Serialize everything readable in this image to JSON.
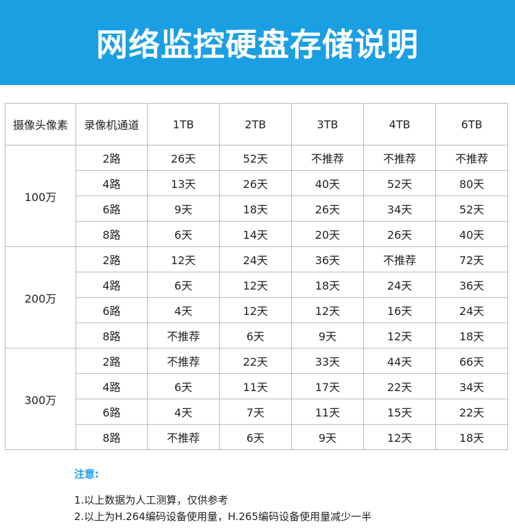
{
  "title": "网络监控硬盘存储说明",
  "table": {
    "headers": [
      "摄像头像素",
      "录像机通道",
      "1TB",
      "2TB",
      "3TB",
      "4TB",
      "6TB"
    ],
    "groups": [
      {
        "pixel": "100万",
        "rows": [
          {
            "channel": "2路",
            "values": [
              "26天",
              "52天",
              "不推荐",
              "不推荐",
              "不推荐"
            ]
          },
          {
            "channel": "4路",
            "values": [
              "13天",
              "26天",
              "40天",
              "52天",
              "80天"
            ]
          },
          {
            "channel": "6路",
            "values": [
              "9天",
              "18天",
              "26天",
              "34天",
              "52天"
            ]
          },
          {
            "channel": "8路",
            "values": [
              "6天",
              "14天",
              "20天",
              "26天",
              "40天"
            ]
          }
        ]
      },
      {
        "pixel": "200万",
        "rows": [
          {
            "channel": "2路",
            "values": [
              "12天",
              "24天",
              "36天",
              "不推荐",
              "72天"
            ]
          },
          {
            "channel": "4路",
            "values": [
              "6天",
              "12天",
              "18天",
              "24天",
              "36天"
            ]
          },
          {
            "channel": "6路",
            "values": [
              "4天",
              "12天",
              "12天",
              "16天",
              "24天"
            ]
          },
          {
            "channel": "8路",
            "values": [
              "不推荐",
              "6天",
              "9天",
              "12天",
              "18天"
            ]
          }
        ]
      },
      {
        "pixel": "300万",
        "rows": [
          {
            "channel": "2路",
            "values": [
              "不推荐",
              "22天",
              "33天",
              "44天",
              "66天"
            ]
          },
          {
            "channel": "4路",
            "values": [
              "6天",
              "11天",
              "17天",
              "22天",
              "34天"
            ]
          },
          {
            "channel": "6路",
            "values": [
              "4天",
              "7天",
              "11天",
              "15天",
              "22天"
            ]
          },
          {
            "channel": "8路",
            "values": [
              "不推荐",
              "6天",
              "9天",
              "12天",
              "18天"
            ]
          }
        ]
      }
    ]
  },
  "notes": {
    "title": "注意:",
    "items": [
      "1.以上数据为人工测算，仅供参考",
      "2.以上为H.264编码设备使用量，H.265编码设备使用量减少一半"
    ]
  },
  "colors": {
    "banner": "#1a9fe3",
    "notes_title": "#1a9fe3",
    "grid_line": "#b9b9b9"
  }
}
